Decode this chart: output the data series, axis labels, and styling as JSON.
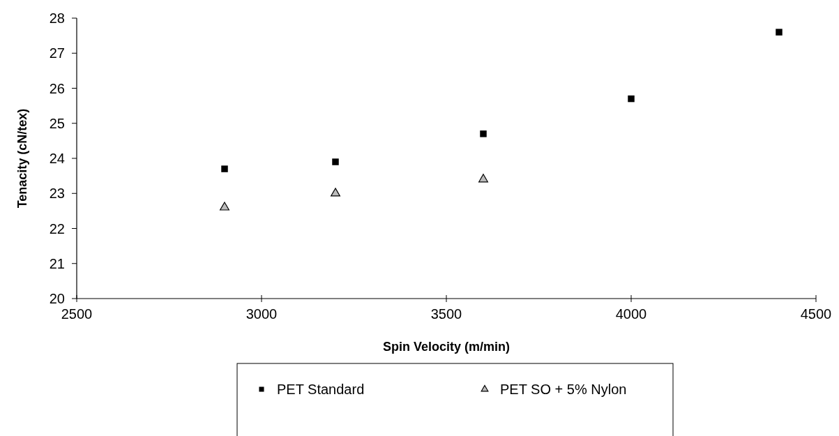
{
  "chart_data": {
    "type": "scatter",
    "xlabel": "Spin Velocity (m/min)",
    "ylabel": "Tenacity (cN/tex)",
    "xlim": [
      2500,
      4500
    ],
    "xticks": [
      2500,
      3000,
      3500,
      4000,
      4500
    ],
    "ylim": [
      20,
      28
    ],
    "yticks": [
      20,
      21,
      22,
      23,
      24,
      25,
      26,
      27,
      28
    ],
    "grid": false,
    "legend": "bottom",
    "series": [
      {
        "name": "PET Standard",
        "color": "#000000",
        "marker": "square",
        "x": [
          2900,
          3200,
          3600,
          4000,
          4400
        ],
        "values": [
          23.7,
          23.9,
          24.7,
          25.7,
          27.6
        ]
      },
      {
        "name": "PET SO + 5% Nylon",
        "color": "#000000",
        "marker": "triangle",
        "x": [
          2900,
          3200,
          3600
        ],
        "values": [
          22.6,
          23.0,
          23.4
        ]
      }
    ]
  }
}
